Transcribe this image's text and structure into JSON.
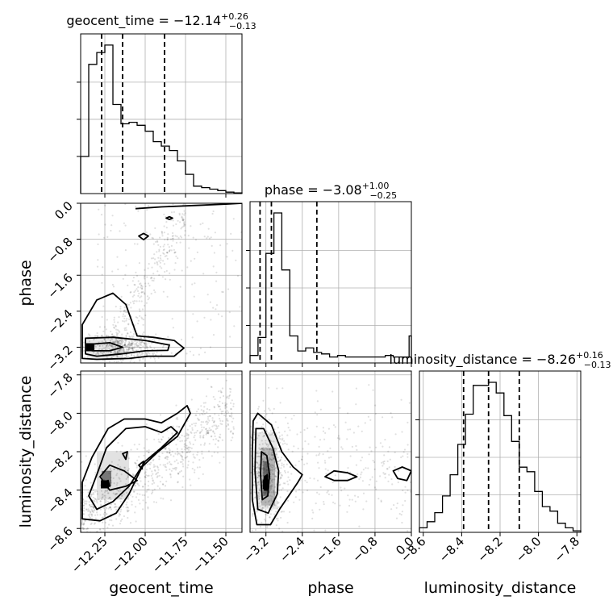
{
  "chart_data": {
    "type": "corner",
    "params": [
      "geocent_time",
      "phase",
      "luminosity_distance"
    ],
    "axis_labels": {
      "geocent_time": "geocent_time",
      "phase": "phase",
      "luminosity_distance": "luminosity_distance"
    },
    "ranges": {
      "geocent_time": [
        -12.4,
        -11.4
      ],
      "phase": [
        -3.55,
        0.0
      ],
      "luminosity_distance": [
        -8.62,
        -7.78
      ]
    },
    "ticks": {
      "geocent_time": [
        -12.25,
        -12.0,
        -11.75,
        -11.5
      ],
      "phase": [
        -3.2,
        -2.4,
        -1.6,
        -0.8,
        0.0
      ],
      "luminosity_distance": [
        -8.6,
        -8.4,
        -8.2,
        -8.0,
        -7.8
      ]
    },
    "tick_labels": {
      "geocent_time": [
        "−12.25",
        "−12.00",
        "−11.75",
        "−11.50"
      ],
      "phase": [
        "−3.2",
        "−2.4",
        "−1.6",
        "−0.8",
        "0.0"
      ],
      "luminosity_distance": [
        "−8.6",
        "−8.4",
        "−8.2",
        "−8.0",
        "−7.8"
      ]
    },
    "titles": {
      "geocent_time": {
        "text": "geocent_time = −12.14",
        "sup": "+0.26",
        "sub": "−0.13"
      },
      "phase": {
        "text": "phase = −3.08",
        "sup": "+1.00",
        "sub": "−0.25"
      },
      "luminosity_distance": {
        "text": "luminosity_distance = −8.26",
        "sup": "+0.16",
        "sub": "−0.13"
      }
    },
    "quantiles": {
      "geocent_time": [
        -12.27,
        -12.14,
        -11.88
      ],
      "phase": [
        -3.33,
        -3.08,
        -2.08
      ],
      "luminosity_distance": [
        -8.39,
        -8.26,
        -8.1
      ]
    },
    "histograms": {
      "geocent_time": {
        "edges": [
          -12.4,
          -12.35,
          -12.3,
          -12.25,
          -12.2,
          -12.15,
          -12.1,
          -12.05,
          -12.0,
          -11.95,
          -11.9,
          -11.85,
          -11.8,
          -11.75,
          -11.7,
          -11.65,
          -11.6,
          -11.55,
          -11.5,
          -11.45,
          -11.4
        ],
        "counts": [
          0.25,
          0.87,
          0.95,
          1.0,
          0.6,
          0.47,
          0.48,
          0.46,
          0.42,
          0.35,
          0.32,
          0.29,
          0.22,
          0.13,
          0.05,
          0.04,
          0.03,
          0.02,
          0.01,
          0.005
        ]
      },
      "phase": {
        "edges": [
          -3.55,
          -3.375,
          -3.2,
          -3.025,
          -2.85,
          -2.675,
          -2.5,
          -2.325,
          -2.15,
          -1.975,
          -1.8,
          -1.625,
          -1.45,
          -1.275,
          -1.1,
          -0.925,
          -0.75,
          -0.575,
          -0.4,
          -0.225,
          -0.05,
          0.0
        ],
        "counts": [
          0.05,
          0.17,
          0.73,
          1.0,
          0.62,
          0.18,
          0.08,
          0.1,
          0.07,
          0.06,
          0.04,
          0.05,
          0.04,
          0.04,
          0.04,
          0.04,
          0.04,
          0.05,
          0.04,
          0.04,
          0.18
        ]
      },
      "luminosity_distance": {
        "edges": [
          -8.62,
          -8.58,
          -8.54,
          -8.5,
          -8.46,
          -8.42,
          -8.38,
          -8.34,
          -8.3,
          -8.26,
          -8.22,
          -8.18,
          -8.14,
          -8.1,
          -8.06,
          -8.02,
          -7.98,
          -7.94,
          -7.9,
          -7.86,
          -7.82,
          -7.78
        ],
        "counts": [
          0.03,
          0.07,
          0.13,
          0.24,
          0.38,
          0.58,
          0.78,
          0.97,
          0.97,
          0.99,
          0.92,
          0.77,
          0.6,
          0.43,
          0.4,
          0.27,
          0.17,
          0.14,
          0.06,
          0.03,
          0.01
        ]
      }
    },
    "contours": {
      "phase_vs_geocent_time": [
        {
          "level": "outer",
          "points": [
            [
              -12.39,
              -2.7
            ],
            [
              -12.3,
              -2.15
            ],
            [
              -12.2,
              -2.0
            ],
            [
              -12.12,
              -2.25
            ],
            [
              -12.05,
              -2.95
            ],
            [
              -11.95,
              -2.98
            ],
            [
              -11.82,
              -3.05
            ],
            [
              -11.76,
              -3.22
            ],
            [
              -11.82,
              -3.4
            ],
            [
              -11.98,
              -3.4
            ],
            [
              -12.1,
              -3.45
            ],
            [
              -12.3,
              -3.47
            ],
            [
              -12.39,
              -3.45
            ]
          ]
        },
        {
          "level": "middle",
          "points": [
            [
              -12.37,
              -3.0
            ],
            [
              -12.2,
              -2.98
            ],
            [
              -12.0,
              -3.05
            ],
            [
              -11.85,
              -3.15
            ],
            [
              -11.86,
              -3.27
            ],
            [
              -12.0,
              -3.28
            ],
            [
              -12.15,
              -3.35
            ],
            [
              -12.3,
              -3.4
            ],
            [
              -12.37,
              -3.35
            ]
          ]
        },
        {
          "level": "inner",
          "points": [
            [
              -12.33,
              -3.13
            ],
            [
              -12.22,
              -3.1
            ],
            [
              -12.14,
              -3.2
            ],
            [
              -12.22,
              -3.28
            ],
            [
              -12.33,
              -3.28
            ]
          ]
        },
        {
          "level": "island",
          "points": [
            [
              -12.04,
              -0.73
            ],
            [
              -12.01,
              -0.67
            ],
            [
              -11.98,
              -0.73
            ],
            [
              -12.01,
              -0.81
            ]
          ]
        },
        {
          "level": "island",
          "points": [
            [
              -11.87,
              -0.33
            ],
            [
              -11.85,
              -0.3
            ],
            [
              -11.83,
              -0.33
            ],
            [
              -11.85,
              -0.36
            ]
          ]
        },
        {
          "level": "top",
          "points": [
            [
              -12.06,
              -0.12
            ],
            [
              -11.9,
              -0.08
            ],
            [
              -11.7,
              -0.05
            ],
            [
              -11.5,
              -0.02
            ],
            [
              -11.4,
              0.0
            ]
          ]
        }
      ],
      "luminosity_distance_vs_geocent_time": [
        {
          "level": "outer",
          "points": [
            [
              -12.39,
              -8.36
            ],
            [
              -12.33,
              -8.23
            ],
            [
              -12.23,
              -8.08
            ],
            [
              -12.13,
              -8.03
            ],
            [
              -12.0,
              -8.03
            ],
            [
              -11.9,
              -8.05
            ],
            [
              -11.8,
              -8.0
            ],
            [
              -11.74,
              -7.96
            ],
            [
              -11.72,
              -8.0
            ],
            [
              -11.8,
              -8.12
            ],
            [
              -11.92,
              -8.2
            ],
            [
              -12.02,
              -8.28
            ],
            [
              -12.1,
              -8.42
            ],
            [
              -12.18,
              -8.52
            ],
            [
              -12.28,
              -8.56
            ],
            [
              -12.39,
              -8.55
            ]
          ]
        },
        {
          "level": "middle",
          "points": [
            [
              -12.35,
              -8.43
            ],
            [
              -12.3,
              -8.32
            ],
            [
              -12.24,
              -8.18
            ],
            [
              -12.12,
              -8.08
            ],
            [
              -12.0,
              -8.07
            ],
            [
              -11.9,
              -8.1
            ],
            [
              -11.84,
              -8.07
            ],
            [
              -11.8,
              -8.1
            ],
            [
              -11.9,
              -8.18
            ],
            [
              -12.0,
              -8.25
            ],
            [
              -12.1,
              -8.38
            ],
            [
              -12.2,
              -8.46
            ],
            [
              -12.3,
              -8.5
            ]
          ]
        },
        {
          "level": "inner",
          "points": [
            [
              -12.28,
              -8.33
            ],
            [
              -12.22,
              -8.27
            ],
            [
              -12.13,
              -8.3
            ],
            [
              -12.05,
              -8.35
            ],
            [
              -12.12,
              -8.38
            ],
            [
              -12.22,
              -8.4
            ]
          ]
        },
        {
          "level": "core",
          "points": [
            [
              -12.26,
              -8.36
            ],
            [
              -12.23,
              -8.35
            ],
            [
              -12.22,
              -8.38
            ],
            [
              -12.25,
              -8.38
            ]
          ]
        },
        {
          "level": "island",
          "points": [
            [
              -12.14,
              -8.21
            ],
            [
              -12.11,
              -8.2
            ],
            [
              -12.12,
              -8.24
            ]
          ]
        },
        {
          "level": "island",
          "points": [
            [
              -12.04,
              -8.27
            ],
            [
              -12.01,
              -8.25
            ],
            [
              -12.02,
              -8.29
            ]
          ]
        }
      ],
      "luminosity_distance_vs_phase": [
        {
          "level": "outer",
          "points": [
            [
              -3.48,
              -8.04
            ],
            [
              -3.38,
              -8.0
            ],
            [
              -3.08,
              -8.06
            ],
            [
              -2.85,
              -8.2
            ],
            [
              -2.6,
              -8.28
            ],
            [
              -2.4,
              -8.32
            ],
            [
              -2.5,
              -8.36
            ],
            [
              -2.9,
              -8.5
            ],
            [
              -3.1,
              -8.58
            ],
            [
              -3.4,
              -8.58
            ],
            [
              -3.5,
              -8.45
            ],
            [
              -3.5,
              -8.2
            ]
          ]
        },
        {
          "level": "middle",
          "points": [
            [
              -3.42,
              -8.08
            ],
            [
              -3.25,
              -8.08
            ],
            [
              -3.05,
              -8.18
            ],
            [
              -2.92,
              -8.3
            ],
            [
              -2.95,
              -8.42
            ],
            [
              -3.15,
              -8.52
            ],
            [
              -3.38,
              -8.5
            ],
            [
              -3.44,
              -8.3
            ]
          ]
        },
        {
          "level": "inner",
          "points": [
            [
              -3.3,
              -8.2
            ],
            [
              -3.18,
              -8.22
            ],
            [
              -3.12,
              -8.32
            ],
            [
              -3.16,
              -8.43
            ],
            [
              -3.28,
              -8.45
            ],
            [
              -3.32,
              -8.32
            ]
          ]
        },
        {
          "level": "core",
          "points": [
            [
              -3.23,
              -8.33
            ],
            [
              -3.17,
              -8.32
            ],
            [
              -3.17,
              -8.4
            ],
            [
              -3.23,
              -8.4
            ]
          ]
        },
        {
          "level": "tail",
          "points": [
            [
              -1.9,
              -8.33
            ],
            [
              -1.7,
              -8.3
            ],
            [
              -1.4,
              -8.31
            ],
            [
              -1.2,
              -8.33
            ],
            [
              -1.4,
              -8.35
            ],
            [
              -1.7,
              -8.35
            ]
          ]
        },
        {
          "level": "tail",
          "points": [
            [
              -0.4,
              -8.3
            ],
            [
              -0.2,
              -8.28
            ],
            [
              0.0,
              -8.3
            ],
            [
              -0.1,
              -8.35
            ],
            [
              -0.3,
              -8.34
            ]
          ]
        }
      ]
    }
  }
}
